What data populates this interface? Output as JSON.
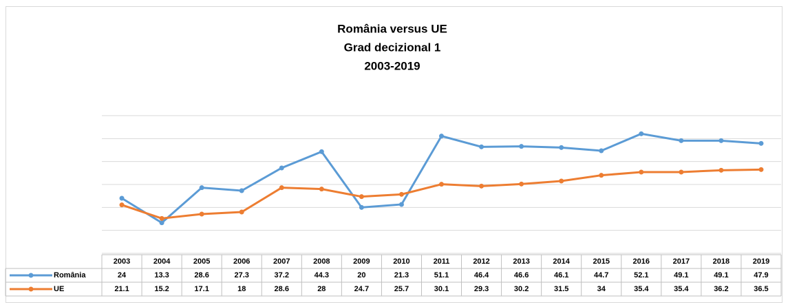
{
  "chart_data": {
    "type": "line",
    "title": [
      "România versus UE",
      "Grad decizional 1",
      "2003-2019"
    ],
    "categories": [
      "2003",
      "2004",
      "2005",
      "2006",
      "2007",
      "2008",
      "2009",
      "2010",
      "2011",
      "2012",
      "2013",
      "2014",
      "2015",
      "2016",
      "2017",
      "2018",
      "2019"
    ],
    "series": [
      {
        "name": "România",
        "color": "#5b9bd5",
        "values": [
          24,
          13.3,
          28.6,
          27.3,
          37.2,
          44.3,
          20,
          21.3,
          51.1,
          46.4,
          46.6,
          46.1,
          44.7,
          52.1,
          49.1,
          49.1,
          47.9
        ]
      },
      {
        "name": "UE",
        "color": "#ed7d31",
        "values": [
          21.1,
          15.2,
          17.1,
          18,
          28.6,
          28,
          24.7,
          25.7,
          30.1,
          29.3,
          30.2,
          31.5,
          34,
          35.4,
          35.4,
          36.2,
          36.5
        ]
      }
    ],
    "ylim": [
      0,
      60
    ],
    "yticks": [
      0,
      10,
      20,
      30,
      40,
      50,
      60
    ],
    "grid": true
  }
}
